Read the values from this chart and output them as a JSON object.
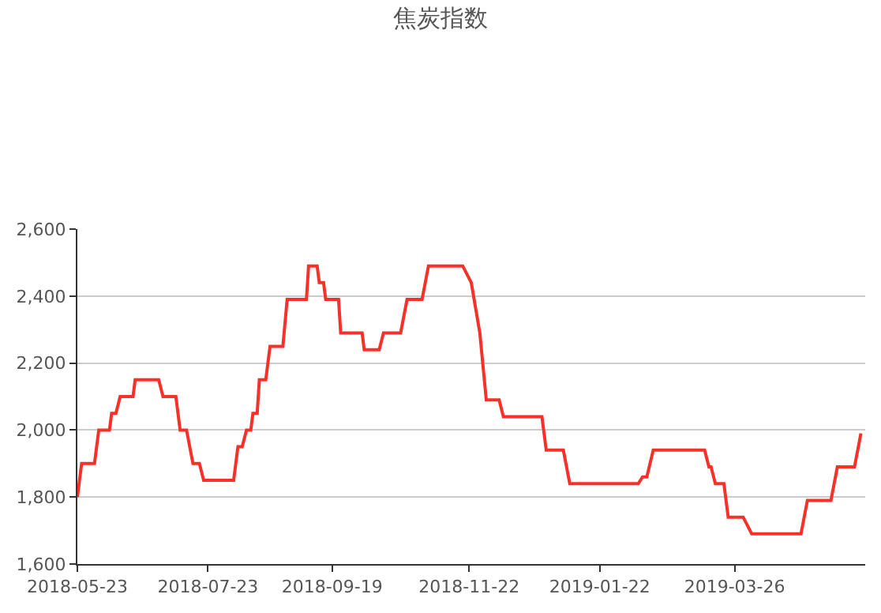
{
  "chart_data": {
    "type": "line",
    "title": "焦炭指数",
    "x": [
      "2018-05-23",
      "2018-05-25",
      "2018-05-31",
      "2018-06-02",
      "2018-06-07",
      "2018-06-08",
      "2018-06-10",
      "2018-06-12",
      "2018-06-18",
      "2018-06-19",
      "2018-06-30",
      "2018-07-02",
      "2018-07-08",
      "2018-07-10",
      "2018-07-13",
      "2018-07-16",
      "2018-07-19",
      "2018-07-21",
      "2018-08-04",
      "2018-08-06",
      "2018-08-08",
      "2018-08-10",
      "2018-08-12",
      "2018-08-13",
      "2018-08-15",
      "2018-08-16",
      "2018-08-19",
      "2018-08-21",
      "2018-08-27",
      "2018-08-29",
      "2018-09-07",
      "2018-09-08",
      "2018-09-12",
      "2018-09-13",
      "2018-09-15",
      "2018-09-16",
      "2018-09-19",
      "2018-09-22",
      "2018-09-23",
      "2018-10-03",
      "2018-10-04",
      "2018-10-11",
      "2018-10-13",
      "2018-10-21",
      "2018-10-24",
      "2018-10-31",
      "2018-11-03",
      "2018-11-19",
      "2018-11-23",
      "2018-11-27",
      "2018-11-30",
      "2018-12-06",
      "2018-12-08",
      "2018-12-26",
      "2018-12-28",
      "2019-01-05",
      "2019-01-08",
      "2019-01-22",
      "2019-02-09",
      "2019-02-11",
      "2019-02-13",
      "2019-02-16",
      "2019-03-12",
      "2019-03-14",
      "2019-03-15",
      "2019-03-17",
      "2019-03-21",
      "2019-03-23",
      "2019-03-26",
      "2019-03-30",
      "2019-04-03",
      "2019-04-26",
      "2019-04-29",
      "2019-05-10",
      "2019-05-13",
      "2019-05-21",
      "2019-05-24"
    ],
    "series": [
      {
        "color": "#f5312a",
        "values": [
          1800,
          1900,
          1900,
          2000,
          2000,
          2050,
          2050,
          2100,
          2100,
          2150,
          2150,
          2100,
          2100,
          2000,
          2000,
          1900,
          1900,
          1850,
          1850,
          1950,
          1950,
          2000,
          2000,
          2050,
          2050,
          2150,
          2150,
          2250,
          2250,
          2390,
          2390,
          2490,
          2490,
          2440,
          2440,
          2390,
          2390,
          2390,
          2290,
          2290,
          2240,
          2240,
          2290,
          2290,
          2390,
          2390,
          2490,
          2490,
          2440,
          2290,
          2090,
          2090,
          2040,
          2040,
          1940,
          1940,
          1840,
          1840,
          1840,
          1860,
          1860,
          1940,
          1940,
          1890,
          1890,
          1840,
          1840,
          1740,
          1740,
          1740,
          1690,
          1690,
          1790,
          1790,
          1890,
          1890,
          1990
        ]
      }
    ],
    "xlim": [
      "2018-05-23",
      "2019-05-26"
    ],
    "xticks": [
      "2018-05-23",
      "2018-07-23",
      "2018-09-19",
      "2018-11-22",
      "2019-01-22",
      "2019-03-26"
    ],
    "ylim": [
      1600,
      2600
    ],
    "yticks": [
      {
        "value": 1600,
        "label": "1,600"
      },
      {
        "value": 1800,
        "label": "1,800"
      },
      {
        "value": 2000,
        "label": "2,000"
      },
      {
        "value": 2200,
        "label": "2,200"
      },
      {
        "value": 2400,
        "label": "2,400"
      },
      {
        "value": 2600,
        "label": "2,600"
      }
    ],
    "grid": "y",
    "marker": "none",
    "line_style": "solid"
  }
}
